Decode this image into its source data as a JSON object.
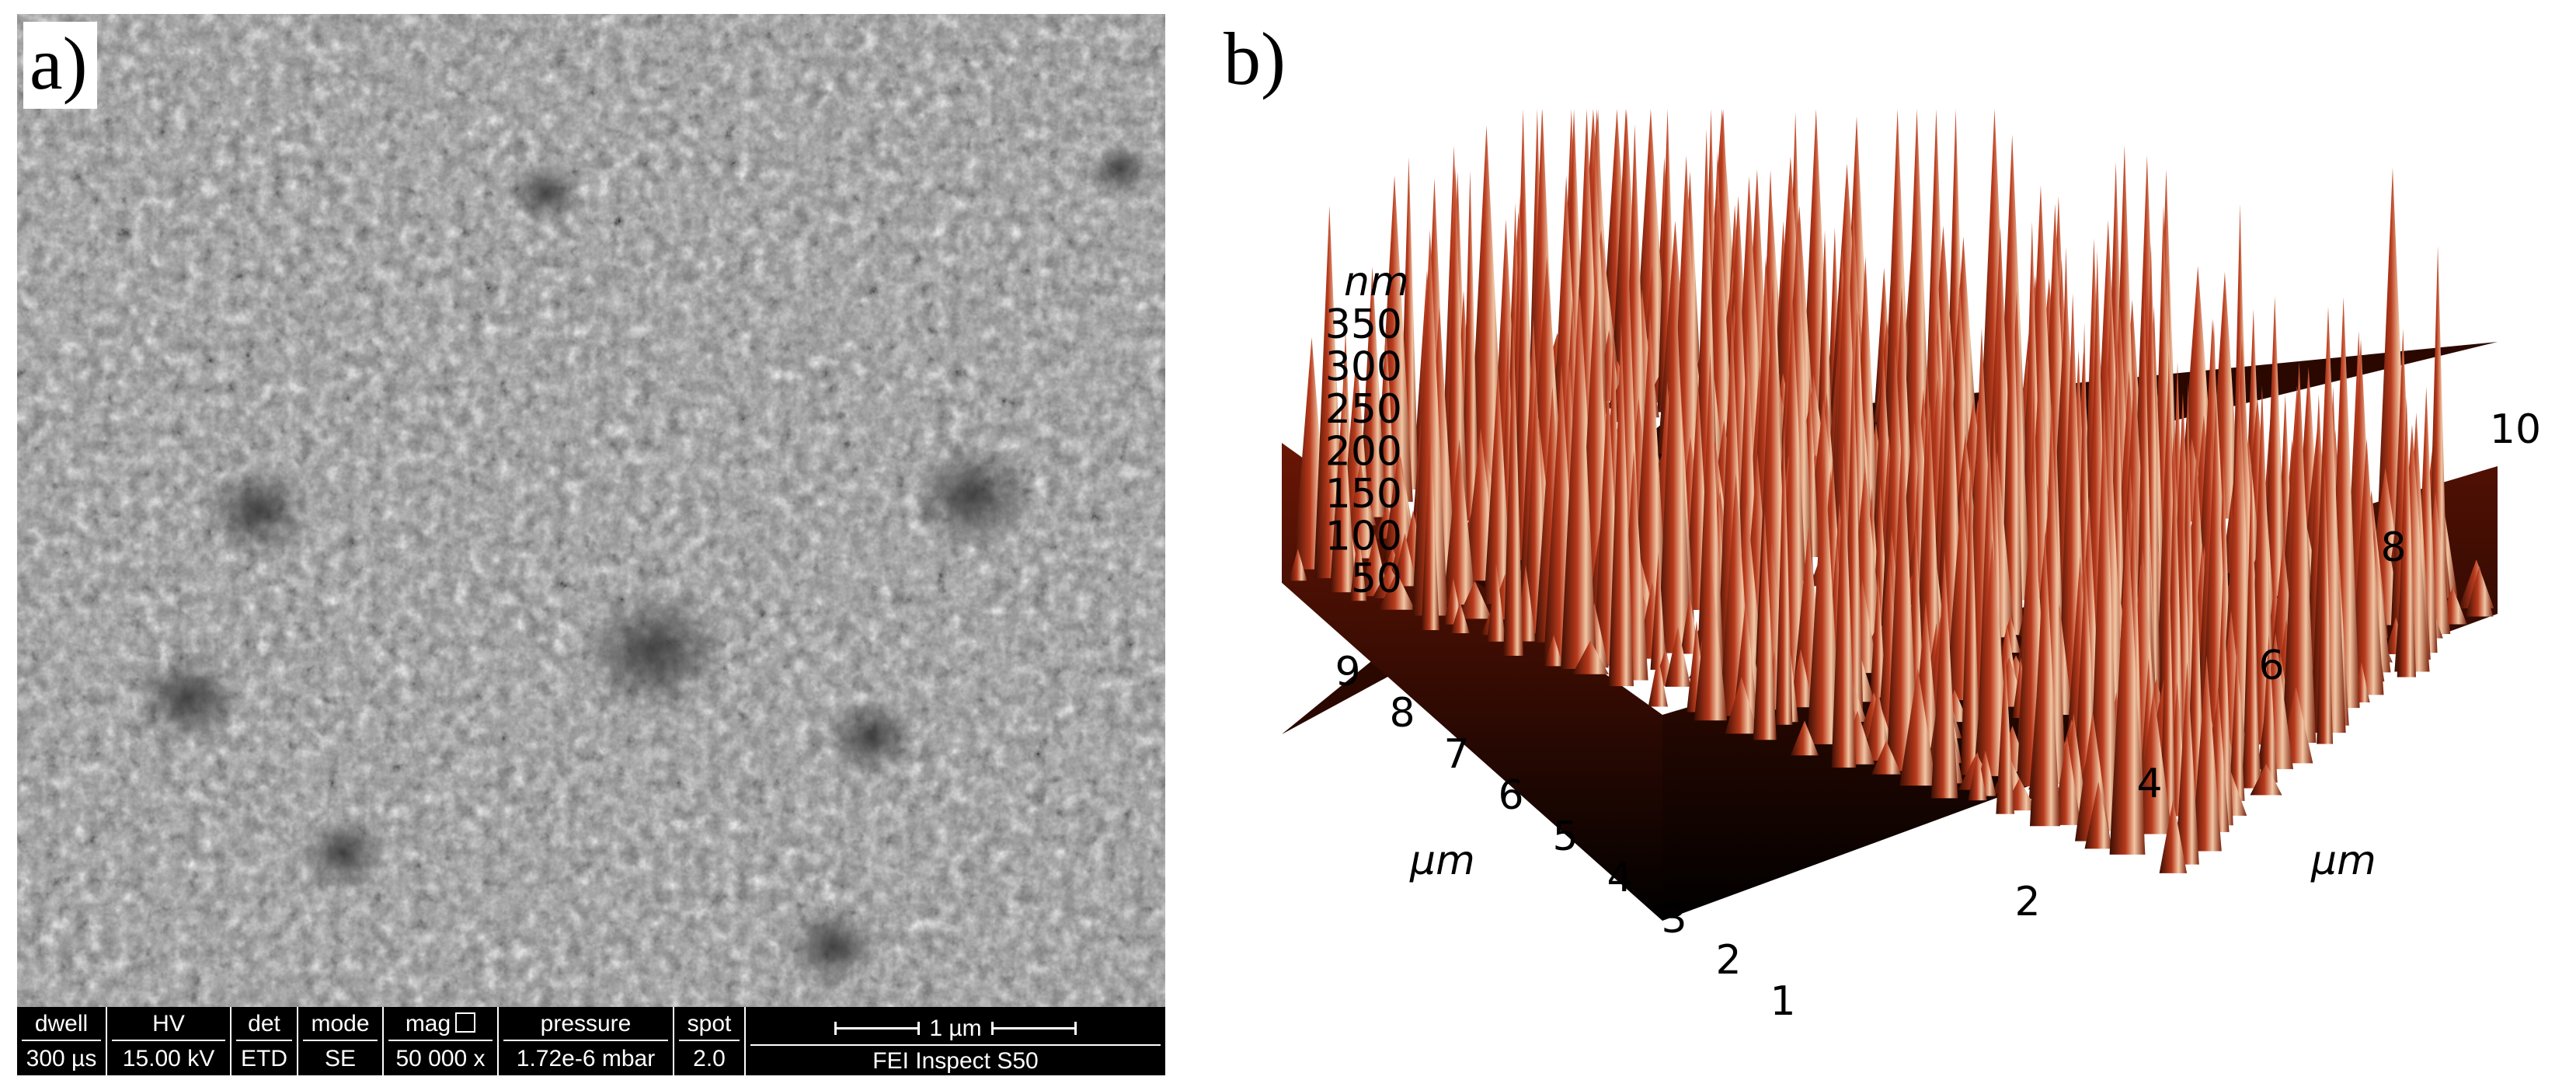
{
  "panels": {
    "a": {
      "label": "a)"
    },
    "b": {
      "label": "b)"
    }
  },
  "sem_databar": {
    "dwell_label": "dwell",
    "dwell_value": "300 µs",
    "hv_label": "HV",
    "hv_value": "15.00 kV",
    "det_label": "det",
    "det_value": "ETD",
    "mode_label": "mode",
    "mode_value": "SE",
    "mag_label": "mag",
    "mag_value": "50 000 x",
    "pressure_label": "pressure",
    "pressure_value": "1.72e-6 mbar",
    "spot_label": "spot",
    "spot_value": "2.0",
    "scale_label": "1 µm",
    "instrument": "FEI Inspect S50"
  },
  "afm": {
    "z_unit": "nm",
    "z_ticks": [
      "350",
      "300",
      "250",
      "200",
      "150",
      "100",
      "50"
    ],
    "left_axis_unit": "µm",
    "left_axis_ticks": [
      "9",
      "8",
      "7",
      "6",
      "5",
      "4",
      "3",
      "2",
      "1"
    ],
    "right_axis_unit": "µm",
    "right_axis_ticks": [
      "2",
      "4",
      "6",
      "8",
      "10"
    ],
    "colors": {
      "surface_dark": "#1a0500",
      "surface_mid": "#b2341a",
      "surface_light": "#f0c2a0"
    }
  }
}
